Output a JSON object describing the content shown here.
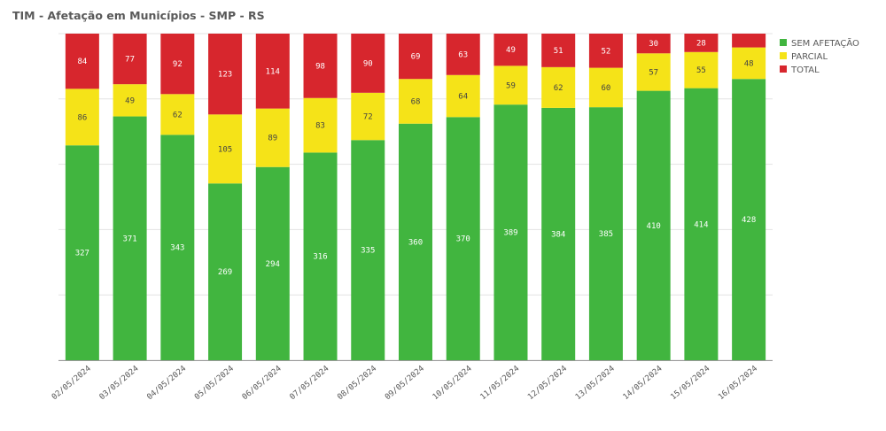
{
  "chart_data": {
    "type": "bar",
    "stacked": true,
    "title": "TIM - Afetação em Municípios - SMP - RS",
    "xlabel": "",
    "ylabel": "",
    "ylim": [
      0,
      497
    ],
    "categories": [
      "02/05/2024",
      "03/05/2024",
      "04/05/2024",
      "05/05/2024",
      "06/05/2024",
      "07/05/2024",
      "08/05/2024",
      "09/05/2024",
      "10/05/2024",
      "11/05/2024",
      "12/05/2024",
      "13/05/2024",
      "14/05/2024",
      "15/05/2024",
      "16/05/2024"
    ],
    "series": [
      {
        "name": "SEM AFETAÇÃO",
        "color": "#41b53f",
        "label_color": "#ffffff",
        "values": [
          327,
          371,
          343,
          269,
          294,
          316,
          335,
          360,
          370,
          389,
          384,
          385,
          410,
          414,
          428
        ]
      },
      {
        "name": "PARCIAL",
        "color": "#f5e318",
        "label_color": "#444444",
        "values": [
          86,
          49,
          62,
          105,
          89,
          83,
          72,
          68,
          64,
          59,
          62,
          60,
          57,
          55,
          48
        ]
      },
      {
        "name": "TOTAL",
        "color": "#d7262d",
        "label_color": "#ffffff",
        "values": [
          84,
          77,
          92,
          123,
          114,
          98,
          90,
          69,
          63,
          49,
          51,
          52,
          30,
          28,
          21
        ]
      }
    ],
    "hidden_labels": [
      {
        "series": 2,
        "index": 14
      }
    ],
    "legend_position": "top-right",
    "grid": true
  }
}
